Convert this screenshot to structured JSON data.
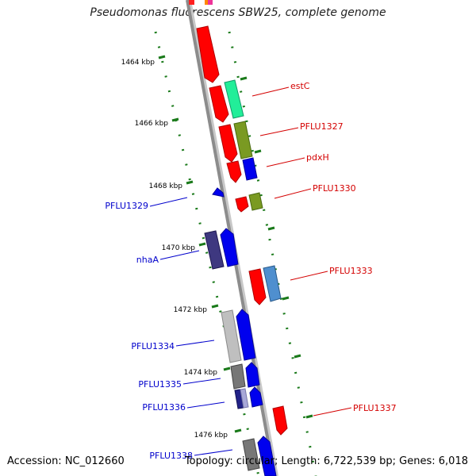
{
  "title": "Pseudomonas fluorescens SBW25, complete genome",
  "accession": "Accession: NC_012660",
  "topology": "Topology: circular; Length: 6,722,539 bp; Genes: 6,018",
  "colors": {
    "backbone": "#8c8c8c",
    "tick": "#1a7a1a",
    "forward_label": "#d40000",
    "reverse_label": "#0000cc"
  },
  "scale_ticks": [
    "1464 kbp",
    "1466 kbp",
    "1468 kbp",
    "1470 kbp",
    "1472 kbp",
    "1474 kbp",
    "1476 kbp"
  ],
  "gene_labels_forward": [
    "estC",
    "PFLU1327",
    "pdxH",
    "PFLU1330",
    "PFLU1333",
    "PFLU1337"
  ],
  "gene_labels_reverse": [
    "PFLU1329",
    "nhaA",
    "PFLU1334",
    "PFLU1335",
    "PFLU1336",
    "PFLU1338"
  ]
}
